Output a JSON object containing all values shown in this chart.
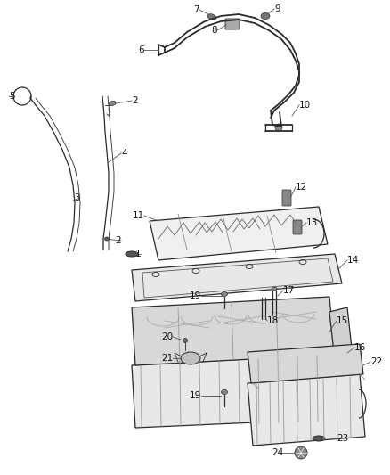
{
  "background_color": "#ffffff",
  "line_color": "#2a2a2a",
  "figsize": [
    4.38,
    5.33
  ],
  "dpi": 100,
  "label_fontsize": 7.5
}
